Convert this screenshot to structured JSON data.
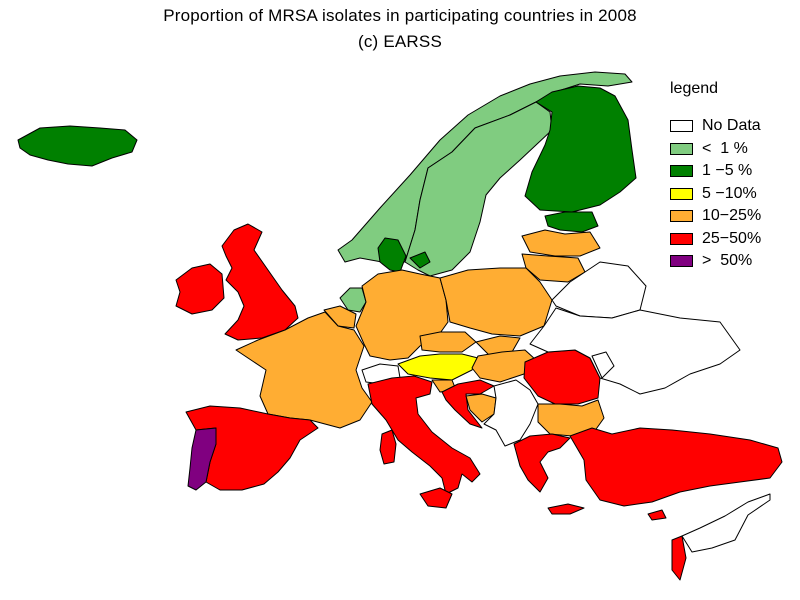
{
  "title": {
    "line1": "Proportion of MRSA isolates in participating countries in 2008",
    "line2": "(c) EARSS"
  },
  "legend": {
    "heading": "legend",
    "categories": [
      {
        "id": "nodata",
        "label": "No Data",
        "color": "#ffffff"
      },
      {
        "id": "lt1",
        "label": "<  1 %",
        "color": "#80cc80"
      },
      {
        "id": "1to5",
        "label": "1 −5 %",
        "color": "#008000"
      },
      {
        "id": "5to10",
        "label": "5 −10%",
        "color": "#ffff00"
      },
      {
        "id": "10to25",
        "label": "10−25%",
        "color": "#ffad33"
      },
      {
        "id": "25to50",
        "label": "25−50%",
        "color": "#ff0000"
      },
      {
        "id": "gt50",
        "label": ">  50%",
        "color": "#800080"
      }
    ]
  },
  "map_regions": [
    {
      "name": "iceland",
      "category": "1to5"
    },
    {
      "name": "norway",
      "category": "lt1"
    },
    {
      "name": "sweden",
      "category": "lt1"
    },
    {
      "name": "finland",
      "category": "1to5"
    },
    {
      "name": "estonia",
      "category": "1to5"
    },
    {
      "name": "latvia",
      "category": "10to25"
    },
    {
      "name": "lithuania",
      "category": "10to25"
    },
    {
      "name": "denmark",
      "category": "1to5"
    },
    {
      "name": "netherlands",
      "category": "lt1"
    },
    {
      "name": "belgium",
      "category": "10to25"
    },
    {
      "name": "united-kingdom",
      "category": "25to50"
    },
    {
      "name": "ireland",
      "category": "25to50"
    },
    {
      "name": "france",
      "category": "10to25"
    },
    {
      "name": "germany",
      "category": "10to25"
    },
    {
      "name": "poland",
      "category": "10to25"
    },
    {
      "name": "czech-republic",
      "category": "10to25"
    },
    {
      "name": "slovakia",
      "category": "10to25"
    },
    {
      "name": "austria",
      "category": "5to10"
    },
    {
      "name": "hungary",
      "category": "10to25"
    },
    {
      "name": "switzerland",
      "category": "nodata"
    },
    {
      "name": "slovenia",
      "category": "10to25"
    },
    {
      "name": "croatia",
      "category": "25to50"
    },
    {
      "name": "italy",
      "category": "25to50"
    },
    {
      "name": "sardinia",
      "category": "25to50"
    },
    {
      "name": "sicily",
      "category": "25to50"
    },
    {
      "name": "spain",
      "category": "25to50"
    },
    {
      "name": "portugal",
      "category": "gt50"
    },
    {
      "name": "romania",
      "category": "25to50"
    },
    {
      "name": "bulgaria",
      "category": "10to25"
    },
    {
      "name": "bosnia",
      "category": "10to25"
    },
    {
      "name": "serbia",
      "category": "nodata"
    },
    {
      "name": "greece",
      "category": "25to50"
    },
    {
      "name": "crete",
      "category": "25to50"
    },
    {
      "name": "turkey",
      "category": "25to50"
    },
    {
      "name": "cyprus",
      "category": "25to50"
    },
    {
      "name": "israel",
      "category": "25to50"
    },
    {
      "name": "belarus",
      "category": "nodata"
    },
    {
      "name": "ukraine",
      "category": "nodata"
    },
    {
      "name": "moldova",
      "category": "nodata"
    },
    {
      "name": "levant",
      "category": "nodata"
    }
  ]
}
